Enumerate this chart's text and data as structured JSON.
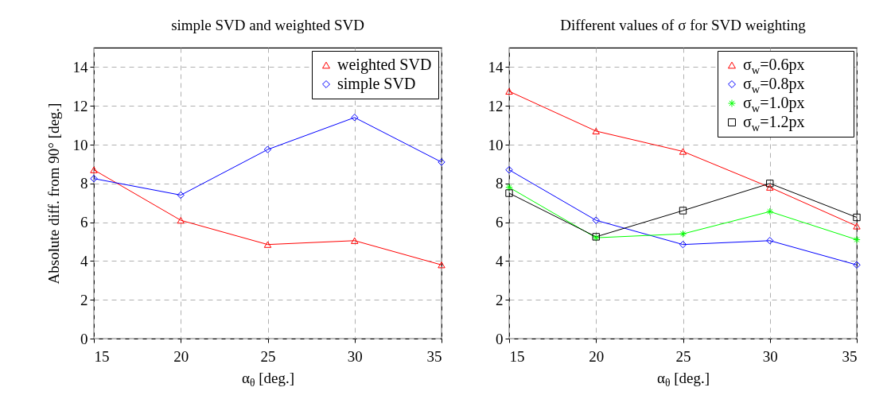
{
  "chart_data": [
    {
      "type": "line",
      "title": "simple SVD and weighted SVD",
      "xlabel": "α$_{θ}$ [deg.]",
      "ylabel": "Absolute diff. from 90° [deg.]",
      "x": [
        15,
        20,
        25,
        30,
        35
      ],
      "xlim": [
        15,
        35
      ],
      "xticks": [
        15,
        20,
        25,
        30,
        35
      ],
      "ylim": [
        0,
        15
      ],
      "yticks": [
        0,
        2,
        4,
        6,
        8,
        10,
        12,
        14
      ],
      "grid": true,
      "legend": "top right",
      "series": [
        {
          "name": "weighted SVD",
          "color": "#ff0000",
          "marker": "triangle",
          "values": [
            8.7,
            6.1,
            4.85,
            5.05,
            3.8
          ]
        },
        {
          "name": "simple SVD",
          "color": "#0000ff",
          "marker": "diamond",
          "values": [
            8.25,
            7.4,
            9.75,
            11.4,
            9.1
          ]
        }
      ]
    },
    {
      "type": "line",
      "title": "Different values of σ for SVD weighting",
      "xlabel": "α$_{θ}$ [deg.]",
      "x": [
        15,
        20,
        25,
        30,
        35
      ],
      "xlim": [
        15,
        35
      ],
      "xticks": [
        15,
        20,
        25,
        30,
        35
      ],
      "ylim": [
        0,
        15
      ],
      "yticks": [
        0,
        2,
        4,
        6,
        8,
        10,
        12,
        14
      ],
      "grid": true,
      "legend": "top right",
      "series": [
        {
          "name": "σ$_{w}$=0.6px",
          "color": "#ff0000",
          "marker": "triangle",
          "values": [
            12.75,
            10.7,
            9.65,
            7.8,
            5.8
          ]
        },
        {
          "name": "σ$_{w}$=0.8px",
          "color": "#0000ff",
          "marker": "diamond",
          "values": [
            8.7,
            6.1,
            4.85,
            5.05,
            3.8
          ]
        },
        {
          "name": "σ$_{w}$=1.0px",
          "color": "#00ff00",
          "marker": "cross",
          "values": [
            7.8,
            5.2,
            5.4,
            6.55,
            5.1
          ]
        },
        {
          "name": "σ$_{w}$=1.2px",
          "color": "#000000",
          "marker": "square",
          "values": [
            7.5,
            5.25,
            6.6,
            8.0,
            6.25
          ]
        }
      ]
    }
  ]
}
